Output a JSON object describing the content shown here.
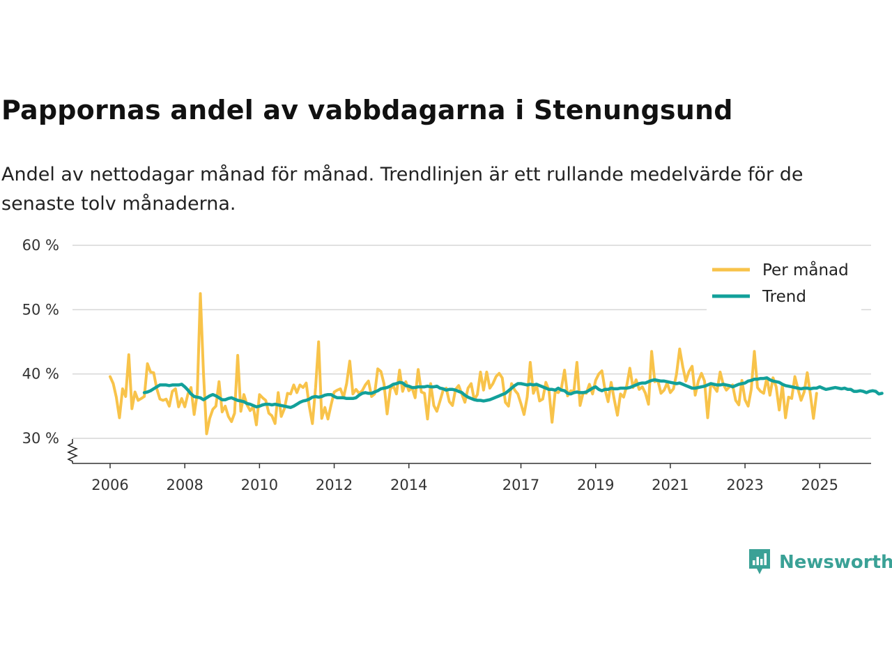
{
  "header": {
    "title": "Pappornas andel av vabbdagarna i Stenungsund",
    "subtitle": "Andel av nettodagar månad för månad. Trendlinjen är ett rullande medelvärde för de senaste tolv månaderna."
  },
  "chart_data": {
    "type": "line",
    "title": "Pappornas andel av vabbdagarna i Stenungsund",
    "xlabel": "",
    "ylabel": "",
    "ylim": [
      27,
      60
    ],
    "xlim": [
      2005.0,
      2026.3
    ],
    "y_ticks": [
      30,
      40,
      50,
      60
    ],
    "y_tick_labels": [
      "30 %",
      "40 %",
      "50 %",
      "60 %"
    ],
    "x_ticks": [
      2006,
      2008,
      2010,
      2012,
      2014,
      2017,
      2019,
      2021,
      2023,
      2025
    ],
    "x_tick_labels": [
      "2006",
      "2008",
      "2010",
      "2012",
      "2014",
      "2017",
      "2019",
      "2021",
      "2023",
      "2025"
    ],
    "grid": true,
    "axis_break": true,
    "legend_position": "top-right",
    "series": [
      {
        "name": "Per månad",
        "color": "#f8c34a",
        "start": 2006.0,
        "step": 0.0833333,
        "values": [
          39.6,
          38.5,
          36.4,
          33.2,
          37.7,
          36.5,
          43.0,
          34.6,
          37.2,
          35.9,
          36.2,
          36.5,
          41.6,
          40.3,
          40.2,
          37.7,
          36.1,
          35.9,
          36.1,
          35.0,
          37.3,
          37.7,
          34.9,
          36.2,
          34.9,
          36.9,
          37.9,
          33.7,
          37.0,
          52.5,
          40.1,
          30.7,
          33.1,
          34.5,
          35.0,
          38.8,
          34.1,
          35.0,
          33.4,
          32.6,
          33.9,
          42.9,
          34.2,
          36.8,
          35.2,
          34.3,
          34.9,
          32.1,
          36.8,
          36.3,
          35.9,
          33.9,
          33.5,
          32.3,
          37.1,
          33.4,
          34.6,
          37.0,
          36.9,
          38.3,
          37.1,
          38.3,
          37.9,
          38.6,
          35.0,
          32.3,
          37.8,
          45.0,
          33.1,
          34.8,
          33.0,
          35.2,
          37.2,
          37.5,
          37.7,
          36.4,
          38.5,
          42.0,
          36.9,
          37.6,
          37.0,
          37.4,
          38.3,
          38.9,
          36.5,
          36.9,
          40.8,
          40.4,
          38.5,
          33.8,
          37.6,
          38.2,
          36.9,
          40.6,
          37.3,
          38.8,
          37.4,
          37.9,
          36.3,
          40.7,
          37.2,
          37.0,
          33.0,
          38.5,
          35.1,
          34.2,
          35.8,
          37.5,
          37.8,
          35.7,
          35.1,
          37.6,
          38.2,
          36.9,
          35.6,
          37.8,
          38.5,
          36.0,
          36.8,
          40.3,
          37.5,
          40.3,
          37.8,
          38.5,
          39.6,
          40.1,
          39.4,
          35.6,
          35.0,
          38.5,
          37.5,
          36.9,
          35.4,
          33.7,
          36.4,
          41.8,
          37.0,
          38.3,
          35.8,
          36.1,
          38.7,
          37.5,
          32.5,
          37.3,
          37.1,
          37.8,
          40.6,
          36.6,
          37.4,
          37.3,
          41.8,
          35.1,
          37.1,
          37.0,
          38.4,
          36.9,
          39.0,
          40.0,
          40.5,
          37.6,
          35.7,
          38.7,
          36.0,
          33.6,
          36.9,
          36.4,
          38.2,
          40.9,
          37.9,
          39.1,
          37.6,
          38.0,
          37.0,
          35.3,
          43.5,
          38.8,
          39.0,
          37.0,
          37.5,
          38.6,
          37.1,
          37.7,
          40.0,
          43.9,
          41.1,
          38.9,
          40.4,
          41.2,
          36.7,
          38.9,
          40.1,
          38.9,
          33.2,
          38.5,
          38.0,
          37.3,
          40.3,
          38.4,
          37.5,
          38.0,
          38.3,
          35.9,
          35.2,
          39.0,
          36.0,
          35.0,
          37.6,
          43.5,
          37.9,
          37.3,
          37.0,
          39.4,
          36.7,
          39.4,
          38.0,
          34.4,
          38.3,
          33.2,
          36.4,
          36.2,
          39.6,
          37.7,
          35.9,
          37.2,
          40.2,
          36.8,
          33.1,
          37.0
        ]
      },
      {
        "name": "Trend",
        "color": "#12a09a",
        "start": 2006.9167,
        "step": 0.0833333,
        "values": [
          37.1,
          37.2,
          37.4,
          37.7,
          38.0,
          38.3,
          38.3,
          38.3,
          38.2,
          38.3,
          38.3,
          38.3,
          38.4,
          38.0,
          37.5,
          36.9,
          36.5,
          36.4,
          36.3,
          36.0,
          36.3,
          36.6,
          36.8,
          36.6,
          36.3,
          36.0,
          36.0,
          36.2,
          36.3,
          36.1,
          35.9,
          35.8,
          35.7,
          35.4,
          35.3,
          35.1,
          34.9,
          35.0,
          35.2,
          35.3,
          35.3,
          35.2,
          35.3,
          35.2,
          35.1,
          35.0,
          34.9,
          34.8,
          35.0,
          35.3,
          35.6,
          35.8,
          35.9,
          36.1,
          36.4,
          36.5,
          36.4,
          36.5,
          36.7,
          36.8,
          36.8,
          36.5,
          36.3,
          36.3,
          36.3,
          36.2,
          36.2,
          36.2,
          36.3,
          36.7,
          37.0,
          37.1,
          37.0,
          37.0,
          37.2,
          37.4,
          37.7,
          37.8,
          37.9,
          38.1,
          38.4,
          38.5,
          38.7,
          38.6,
          38.2,
          38.1,
          37.9,
          37.9,
          38.0,
          38.0,
          38.0,
          38.1,
          38.0,
          38.0,
          38.1,
          37.8,
          37.7,
          37.5,
          37.6,
          37.6,
          37.5,
          37.3,
          37.1,
          36.7,
          36.4,
          36.2,
          36.0,
          35.9,
          35.9,
          35.8,
          35.9,
          36.0,
          36.2,
          36.4,
          36.6,
          36.8,
          37.0,
          37.4,
          37.8,
          38.2,
          38.5,
          38.5,
          38.4,
          38.3,
          38.4,
          38.3,
          38.4,
          38.2,
          38.0,
          37.8,
          37.6,
          37.6,
          37.5,
          37.8,
          37.5,
          37.4,
          37.0,
          36.9,
          37.1,
          37.2,
          37.1,
          37.1,
          37.2,
          37.5,
          37.8,
          38.0,
          37.6,
          37.4,
          37.6,
          37.6,
          37.8,
          37.7,
          37.7,
          37.8,
          37.8,
          37.8,
          37.9,
          38.1,
          38.3,
          38.5,
          38.6,
          38.6,
          38.8,
          39.0,
          39.1,
          39.0,
          38.9,
          38.9,
          38.8,
          38.7,
          38.6,
          38.5,
          38.6,
          38.4,
          38.2,
          38.0,
          37.8,
          37.8,
          37.9,
          38.0,
          38.1,
          38.3,
          38.5,
          38.4,
          38.3,
          38.3,
          38.4,
          38.3,
          38.2,
          38.0,
          38.2,
          38.4,
          38.5,
          38.6,
          38.9,
          39.0,
          39.2,
          39.2,
          39.3,
          39.3,
          39.4,
          39.1,
          38.9,
          38.8,
          38.7,
          38.4,
          38.2,
          38.1,
          38.0,
          37.9,
          37.8,
          37.7,
          37.8,
          37.8,
          37.7,
          37.8,
          37.8,
          38.0,
          37.8,
          37.6,
          37.7,
          37.8,
          37.9,
          37.8,
          37.7,
          37.8,
          37.6,
          37.6,
          37.3,
          37.3,
          37.4,
          37.3,
          37.1,
          37.3,
          37.4,
          37.3,
          36.9,
          37.0
        ]
      }
    ]
  },
  "brand": {
    "name": "Newsworthy",
    "color": "#3aa196"
  }
}
